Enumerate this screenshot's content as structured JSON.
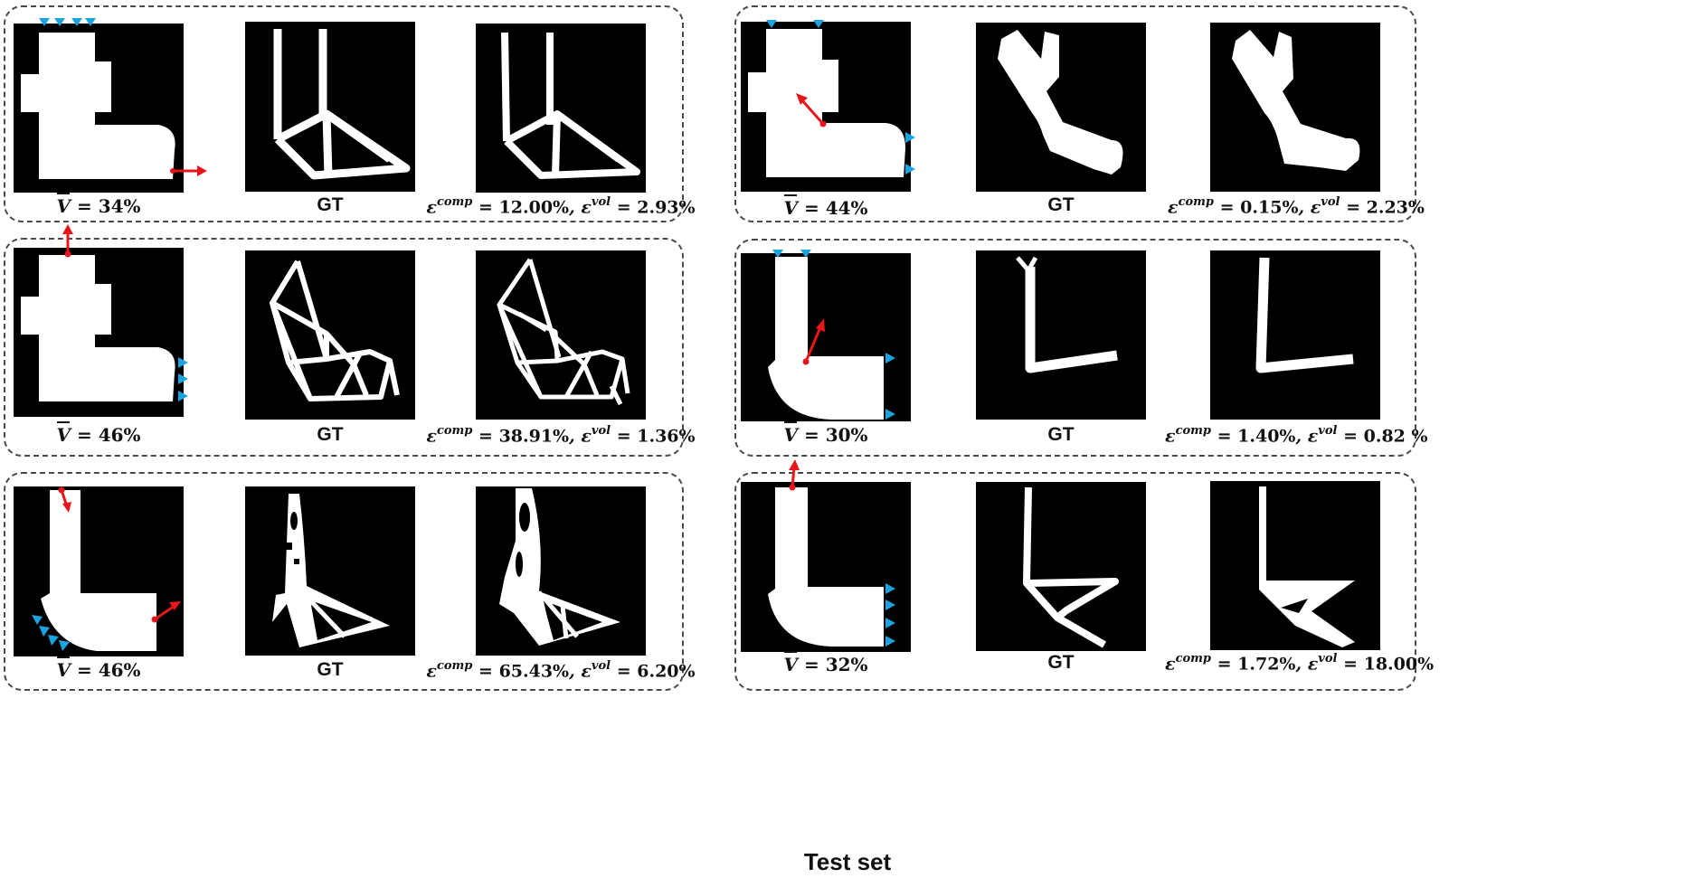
{
  "footer": "Test set",
  "gt_label": "GT",
  "groups": [
    {
      "v": "34%",
      "comp": "12.00%",
      "vol": "2.93%"
    },
    {
      "v": "46%",
      "comp": "38.91%",
      "vol": "1.36%"
    },
    {
      "v": "46%",
      "comp": "65.43%",
      "vol": "6.20%"
    },
    {
      "v": "44%",
      "comp": "0.15%",
      "vol": "2.23%"
    },
    {
      "v": "30%",
      "comp": "1.40%",
      "vol": "0.82 %"
    },
    {
      "v": "32%",
      "comp": "1.72%",
      "vol": "18.00%"
    }
  ],
  "colors": {
    "load_arrow": "#e8161b",
    "support": "#1aa3e0",
    "panel": "#000000",
    "shape": "#ffffff"
  }
}
